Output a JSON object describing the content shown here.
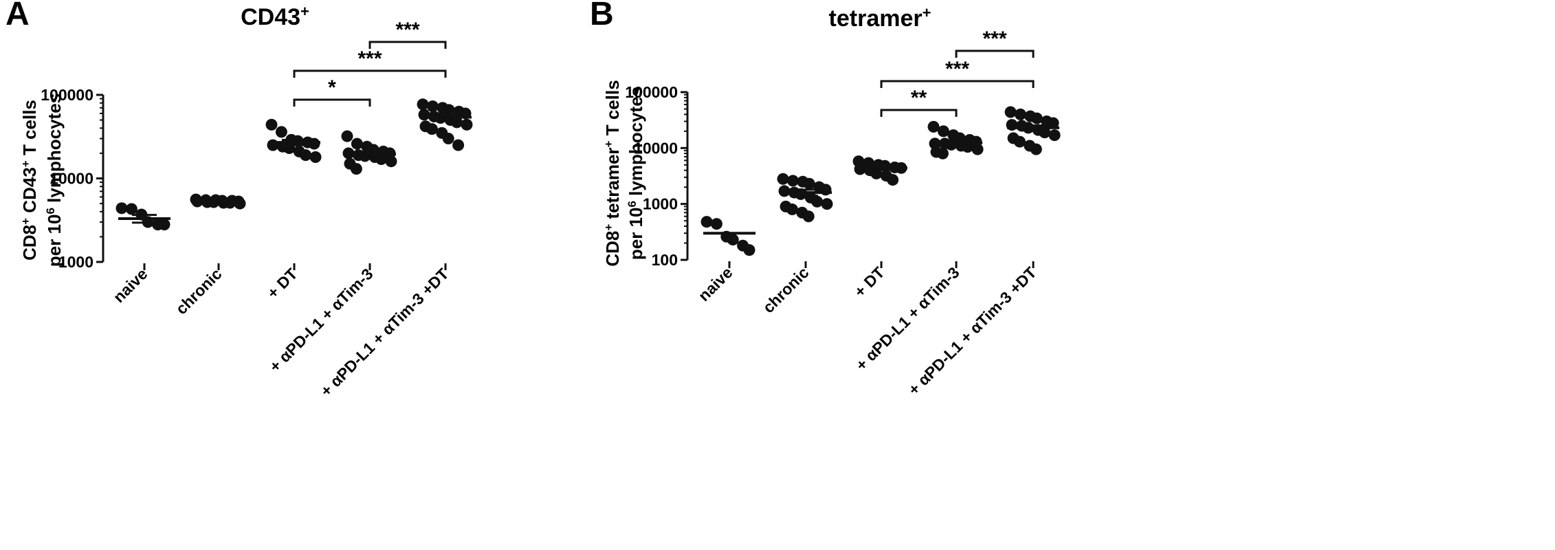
{
  "panel_labels": [
    "A",
    "B"
  ],
  "chart_data": [
    {
      "type": "scatter",
      "panel": "A",
      "title": "CD43",
      "title_sup": "+",
      "ylabel_line1": [
        "CD8",
        "+",
        " CD43",
        "+",
        " T cells"
      ],
      "ylabel_line2": [
        "per 10",
        "6",
        " lymphocytes"
      ],
      "yscale": "log",
      "ylim": [
        1000,
        100000
      ],
      "yticks": [
        1000,
        10000,
        100000
      ],
      "ytick_labels": [
        "1000",
        "10000",
        "100000"
      ],
      "categories": [
        "naive",
        "chronic",
        "+ DT",
        "+ αPD-L1 + αTim-3",
        "+ αPD-L1 + αTim-3 +DT"
      ],
      "points": [
        [
          4400,
          4300,
          3700,
          3000,
          2800,
          2800
        ],
        [
          5600,
          5500,
          5500,
          5400,
          5400,
          5300,
          5300,
          5200,
          5200,
          5100,
          5100,
          5000
        ],
        [
          44000,
          36000,
          29000,
          28000,
          27000,
          26000,
          25000,
          24000,
          23000,
          21000,
          19000,
          18000
        ],
        [
          32000,
          26000,
          24000,
          22000,
          21000,
          20000,
          20000,
          19000,
          18500,
          18000,
          17000,
          16000,
          15000,
          13000
        ],
        [
          77000,
          73000,
          70000,
          66000,
          63000,
          60000,
          58000,
          55000,
          53000,
          50000,
          47000,
          44000,
          42000,
          39000,
          35000,
          30000,
          25000
        ]
      ],
      "means": [
        3300,
        5300,
        27000,
        19500,
        54000
      ],
      "sems": [
        350,
        60,
        1900,
        1200,
        3200
      ],
      "comparisons": [
        {
          "from": 2,
          "to": 3,
          "label": "*"
        },
        {
          "from": 2,
          "to": 4,
          "label": "***"
        },
        {
          "from": 3,
          "to": 4,
          "label": "***"
        }
      ]
    },
    {
      "type": "scatter",
      "panel": "B",
      "title": "tetramer",
      "title_sup": "+",
      "ylabel_line1": [
        "CD8",
        "+",
        " tetramer",
        "+",
        " T cells"
      ],
      "ylabel_line2": [
        "per 10",
        "6",
        " lymphocytes"
      ],
      "yscale": "log",
      "ylim": [
        100,
        100000
      ],
      "yticks": [
        100,
        1000,
        10000,
        100000
      ],
      "ytick_labels": [
        "100",
        "1000",
        "10000",
        "100000"
      ],
      "categories": [
        "naive",
        "chronic",
        "+ DT",
        "+ αPD-L1 + αTim-3",
        "+ αPD-L1 + αTim-3 +DT"
      ],
      "points": [
        [
          480,
          440,
          260,
          230,
          180,
          150
        ],
        [
          2800,
          2600,
          2500,
          2300,
          2000,
          1800,
          1700,
          1600,
          1500,
          1300,
          1100,
          1000,
          900,
          800,
          700,
          600
        ],
        [
          5800,
          5400,
          5000,
          4800,
          4500,
          4400,
          4200,
          4000,
          3500,
          3200,
          2700
        ],
        [
          24000,
          20000,
          17000,
          15000,
          14000,
          13000,
          12000,
          12000,
          11500,
          11000,
          10500,
          9500,
          8500,
          8000
        ],
        [
          44000,
          40000,
          37000,
          34000,
          30000,
          28000,
          26000,
          25000,
          23000,
          21000,
          19000,
          17000,
          15000,
          13000,
          11000,
          9500
        ]
      ],
      "means": [
        300,
        1600,
        4400,
        12300,
        23000
      ],
      "sems": [
        0,
        200,
        300,
        1100,
        2300
      ],
      "comparisons": [
        {
          "from": 2,
          "to": 3,
          "label": "**"
        },
        {
          "from": 2,
          "to": 4,
          "label": "***"
        },
        {
          "from": 3,
          "to": 4,
          "label": "***"
        }
      ]
    }
  ]
}
